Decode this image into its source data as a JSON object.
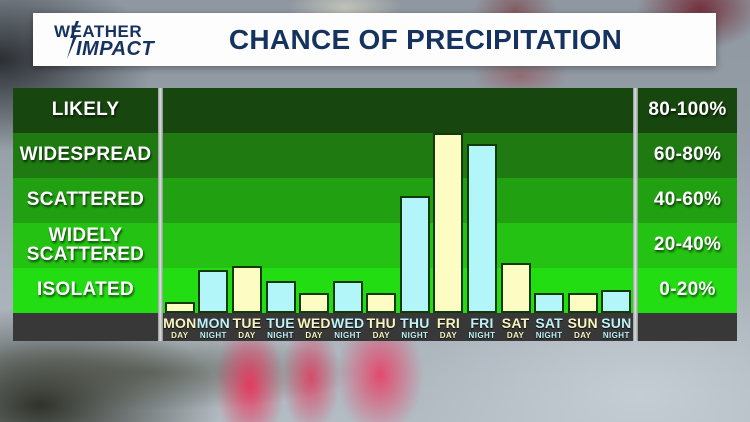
{
  "colors": {
    "navy": "#16335f",
    "banner_bg": "#fdfdfd",
    "axis_strip": "#383838",
    "day_bar": "#fdfcc2",
    "night_bar": "#b2f6f9",
    "bar_border": "#123a08",
    "day_text": "#f9f5be",
    "night_text": "#bef2f7"
  },
  "header": {
    "logo_line1": "WEATHER",
    "logo_line2": "IMPACT",
    "title": "CHANCE OF PRECIPITATION"
  },
  "chart_data": {
    "type": "bar",
    "title": "CHANCE OF PRECIPITATION",
    "ylabel": "Chance of precipitation (%)",
    "ylim": [
      0,
      100
    ],
    "grid": "banded",
    "bands": [
      {
        "label": "LIKELY",
        "range": "80-100%",
        "color": "#17470e"
      },
      {
        "label": "WIDESPREAD",
        "range": "60-80%",
        "color": "#1e7a11"
      },
      {
        "label": "SCATTERED",
        "range": "40-60%",
        "color": "#21a012"
      },
      {
        "label": "WIDELY SCATTERED",
        "range": "20-40%",
        "color": "#24c213"
      },
      {
        "label": "ISOLATED",
        "range": "0-20%",
        "color": "#22dd11"
      }
    ],
    "categories": [
      {
        "day": "MON",
        "period": "DAY",
        "value": 5
      },
      {
        "day": "MON",
        "period": "NIGHT",
        "value": 19
      },
      {
        "day": "TUE",
        "period": "DAY",
        "value": 21
      },
      {
        "day": "TUE",
        "period": "NIGHT",
        "value": 14
      },
      {
        "day": "WED",
        "period": "DAY",
        "value": 9
      },
      {
        "day": "WED",
        "period": "NIGHT",
        "value": 14
      },
      {
        "day": "THU",
        "period": "DAY",
        "value": 9
      },
      {
        "day": "THU",
        "period": "NIGHT",
        "value": 52
      },
      {
        "day": "FRI",
        "period": "DAY",
        "value": 80
      },
      {
        "day": "FRI",
        "period": "NIGHT",
        "value": 75
      },
      {
        "day": "SAT",
        "period": "DAY",
        "value": 22
      },
      {
        "day": "SAT",
        "period": "NIGHT",
        "value": 9
      },
      {
        "day": "SUN",
        "period": "DAY",
        "value": 9
      },
      {
        "day": "SUN",
        "period": "NIGHT",
        "value": 10
      }
    ]
  }
}
